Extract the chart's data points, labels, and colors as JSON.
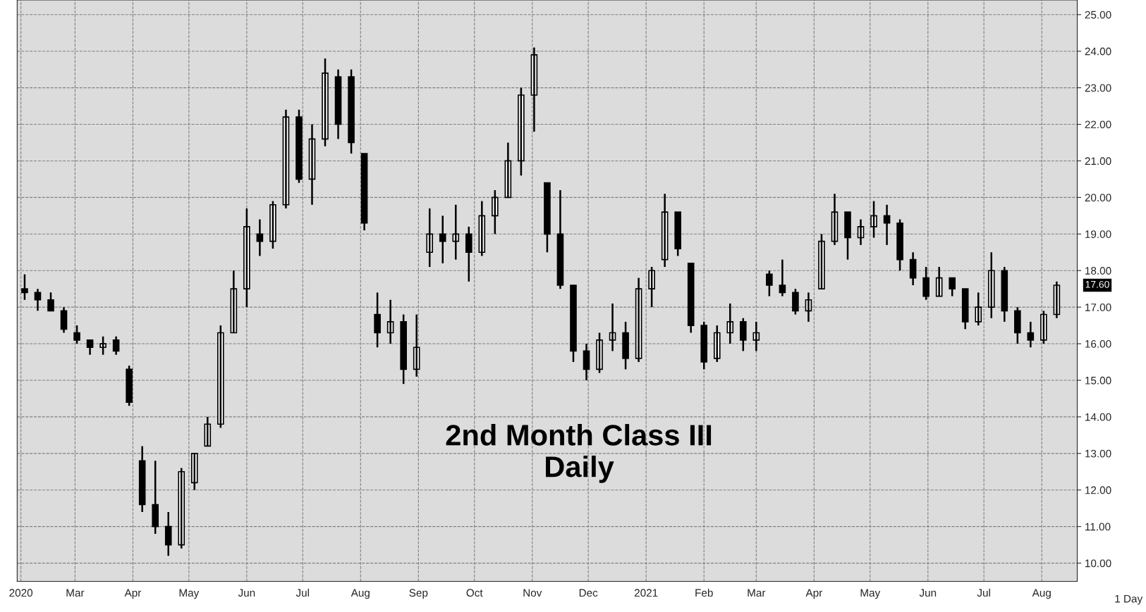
{
  "chart_data": {
    "type": "candlestick",
    "title": "2nd Month Class III\nDaily",
    "x": [
      "2020-02-03",
      "2020-02-10",
      "2020-02-17",
      "2020-02-24",
      "2020-03-02",
      "2020-03-09",
      "2020-03-16",
      "2020-03-23",
      "2020-03-30",
      "2020-04-06",
      "2020-04-13",
      "2020-04-20",
      "2020-04-27",
      "2020-05-04",
      "2020-05-11",
      "2020-05-18",
      "2020-05-25",
      "2020-06-01",
      "2020-06-08",
      "2020-06-15",
      "2020-06-22",
      "2020-06-29",
      "2020-07-06",
      "2020-07-13",
      "2020-07-20",
      "2020-07-27",
      "2020-08-03",
      "2020-08-10",
      "2020-08-17",
      "2020-08-24",
      "2020-08-31",
      "2020-09-07",
      "2020-09-14",
      "2020-09-21",
      "2020-09-28",
      "2020-10-05",
      "2020-10-12",
      "2020-10-19",
      "2020-10-26",
      "2020-11-02",
      "2020-11-09",
      "2020-11-16",
      "2020-11-23",
      "2020-11-30",
      "2020-12-07",
      "2020-12-14",
      "2020-12-21",
      "2020-12-28",
      "2021-01-04",
      "2021-01-11",
      "2021-01-18",
      "2021-01-25",
      "2021-02-01",
      "2021-02-08",
      "2021-02-15",
      "2021-02-22",
      "2021-03-01",
      "2021-03-08",
      "2021-03-15",
      "2021-03-22",
      "2021-03-29",
      "2021-04-05",
      "2021-04-12",
      "2021-04-19",
      "2021-04-26",
      "2021-05-03",
      "2021-05-10",
      "2021-05-17",
      "2021-05-24",
      "2021-05-31",
      "2021-06-07",
      "2021-06-14",
      "2021-06-21",
      "2021-06-28",
      "2021-07-05",
      "2021-07-12",
      "2021-07-19",
      "2021-07-26",
      "2021-08-02",
      "2021-08-09"
    ],
    "ohlc": [
      [
        17.5,
        17.9,
        17.2,
        17.4
      ],
      [
        17.4,
        17.5,
        16.9,
        17.2
      ],
      [
        17.2,
        17.4,
        16.9,
        16.9
      ],
      [
        16.9,
        17.0,
        16.3,
        16.4
      ],
      [
        16.3,
        16.5,
        16.0,
        16.1
      ],
      [
        16.1,
        16.1,
        15.7,
        15.9
      ],
      [
        15.9,
        16.2,
        15.7,
        16.0
      ],
      [
        16.1,
        16.2,
        15.7,
        15.8
      ],
      [
        15.3,
        15.4,
        14.3,
        14.4
      ],
      [
        12.8,
        13.2,
        11.4,
        11.6
      ],
      [
        11.6,
        12.8,
        10.8,
        11.0
      ],
      [
        11.0,
        11.4,
        10.2,
        10.5
      ],
      [
        10.5,
        12.6,
        10.4,
        12.5
      ],
      [
        12.2,
        13.0,
        12.0,
        13.0
      ],
      [
        13.2,
        14.0,
        13.2,
        13.8
      ],
      [
        13.8,
        16.5,
        13.7,
        16.3
      ],
      [
        16.3,
        18.0,
        16.3,
        17.5
      ],
      [
        17.5,
        19.7,
        17.0,
        19.2
      ],
      [
        19.0,
        19.4,
        18.4,
        18.8
      ],
      [
        18.8,
        19.9,
        18.6,
        19.8
      ],
      [
        19.8,
        22.4,
        19.7,
        22.2
      ],
      [
        22.2,
        22.4,
        20.4,
        20.5
      ],
      [
        20.5,
        22.0,
        19.8,
        21.6
      ],
      [
        21.6,
        23.8,
        21.4,
        23.4
      ],
      [
        23.3,
        23.5,
        21.6,
        22.0
      ],
      [
        23.3,
        23.5,
        21.2,
        21.5
      ],
      [
        21.2,
        21.2,
        19.1,
        19.3
      ],
      [
        16.8,
        17.4,
        15.9,
        16.3
      ],
      [
        16.3,
        17.2,
        16.0,
        16.6
      ],
      [
        16.6,
        16.8,
        14.9,
        15.3
      ],
      [
        15.3,
        16.8,
        15.1,
        15.9
      ],
      [
        18.5,
        19.7,
        18.1,
        19.0
      ],
      [
        19.0,
        19.5,
        18.2,
        18.8
      ],
      [
        18.8,
        19.8,
        18.3,
        19.0
      ],
      [
        19.0,
        19.2,
        17.7,
        18.5
      ],
      [
        18.5,
        19.9,
        18.4,
        19.5
      ],
      [
        19.5,
        20.2,
        19.0,
        20.0
      ],
      [
        20.0,
        21.5,
        20.0,
        21.0
      ],
      [
        21.0,
        23.0,
        20.6,
        22.8
      ],
      [
        22.8,
        24.1,
        21.8,
        23.9
      ],
      [
        20.4,
        20.4,
        18.5,
        19.0
      ],
      [
        19.0,
        20.2,
        17.5,
        17.6
      ],
      [
        17.6,
        17.6,
        15.5,
        15.8
      ],
      [
        15.8,
        16.0,
        15.0,
        15.3
      ],
      [
        15.3,
        16.3,
        15.2,
        16.1
      ],
      [
        16.1,
        17.1,
        15.8,
        16.3
      ],
      [
        16.3,
        16.6,
        15.3,
        15.6
      ],
      [
        15.6,
        17.8,
        15.5,
        17.5
      ],
      [
        17.5,
        18.1,
        17.0,
        18.0
      ],
      [
        18.3,
        20.1,
        18.1,
        19.6
      ],
      [
        19.6,
        19.6,
        18.4,
        18.6
      ],
      [
        18.2,
        18.2,
        16.3,
        16.5
      ],
      [
        16.5,
        16.6,
        15.3,
        15.5
      ],
      [
        15.6,
        16.5,
        15.5,
        16.3
      ],
      [
        16.3,
        17.1,
        16.0,
        16.6
      ],
      [
        16.6,
        16.7,
        15.8,
        16.1
      ],
      [
        16.1,
        16.6,
        15.8,
        16.3
      ],
      [
        17.9,
        18.0,
        17.3,
        17.6
      ],
      [
        17.6,
        18.3,
        17.3,
        17.4
      ],
      [
        17.4,
        17.5,
        16.8,
        16.9
      ],
      [
        16.9,
        17.4,
        16.6,
        17.2
      ],
      [
        17.5,
        19.0,
        17.5,
        18.8
      ],
      [
        18.8,
        20.1,
        18.7,
        19.6
      ],
      [
        19.6,
        19.6,
        18.3,
        18.9
      ],
      [
        18.9,
        19.4,
        18.7,
        19.2
      ],
      [
        19.2,
        19.9,
        18.9,
        19.5
      ],
      [
        19.5,
        19.8,
        18.7,
        19.3
      ],
      [
        19.3,
        19.4,
        18.0,
        18.3
      ],
      [
        18.3,
        18.5,
        17.6,
        17.8
      ],
      [
        17.8,
        18.1,
        17.2,
        17.3
      ],
      [
        17.3,
        18.1,
        17.3,
        17.8
      ],
      [
        17.8,
        17.8,
        17.3,
        17.5
      ],
      [
        17.5,
        17.5,
        16.4,
        16.6
      ],
      [
        16.6,
        17.4,
        16.5,
        17.0
      ],
      [
        17.0,
        18.5,
        16.7,
        18.0
      ],
      [
        18.0,
        18.1,
        16.6,
        16.9
      ],
      [
        16.9,
        17.0,
        16.0,
        16.3
      ],
      [
        16.3,
        16.6,
        15.9,
        16.1
      ],
      [
        16.1,
        16.9,
        16.0,
        16.8
      ],
      [
        16.8,
        17.7,
        16.7,
        17.6
      ]
    ],
    "color": "#000000",
    "xlim": [
      "2020-01-30",
      "2021-08-20"
    ],
    "xticks": [
      {
        "value": "2020-02-01",
        "label": "2020"
      },
      {
        "value": "2020-03-01",
        "label": "Mar"
      },
      {
        "value": "2020-04-01",
        "label": "Apr"
      },
      {
        "value": "2020-05-01",
        "label": "May"
      },
      {
        "value": "2020-06-01",
        "label": "Jun"
      },
      {
        "value": "2020-07-01",
        "label": "Jul"
      },
      {
        "value": "2020-08-01",
        "label": "Aug"
      },
      {
        "value": "2020-09-01",
        "label": "Sep"
      },
      {
        "value": "2020-10-01",
        "label": "Oct"
      },
      {
        "value": "2020-11-01",
        "label": "Nov"
      },
      {
        "value": "2020-12-01",
        "label": "Dec"
      },
      {
        "value": "2021-01-01",
        "label": "2021"
      },
      {
        "value": "2021-02-01",
        "label": "Feb"
      },
      {
        "value": "2021-03-01",
        "label": "Mar"
      },
      {
        "value": "2021-04-01",
        "label": "Apr"
      },
      {
        "value": "2021-05-01",
        "label": "May"
      },
      {
        "value": "2021-06-01",
        "label": "Jun"
      },
      {
        "value": "2021-07-01",
        "label": "Jul"
      },
      {
        "value": "2021-08-01",
        "label": "Aug"
      }
    ],
    "ylim": [
      9.5,
      25.4
    ],
    "yticks": [
      {
        "value": 10,
        "label": "10.00"
      },
      {
        "value": 11,
        "label": "11.00"
      },
      {
        "value": 12,
        "label": "12.00"
      },
      {
        "value": 13,
        "label": "13.00"
      },
      {
        "value": 14,
        "label": "14.00"
      },
      {
        "value": 15,
        "label": "15.00"
      },
      {
        "value": 16,
        "label": "16.00"
      },
      {
        "value": 17,
        "label": "17.00"
      },
      {
        "value": 18,
        "label": "18.00"
      },
      {
        "value": 19,
        "label": "19.00"
      },
      {
        "value": 20,
        "label": "20.00"
      },
      {
        "value": 21,
        "label": "21.00"
      },
      {
        "value": 22,
        "label": "22.00"
      },
      {
        "value": 23,
        "label": "23.00"
      },
      {
        "value": 24,
        "label": "24.00"
      },
      {
        "value": 25,
        "label": "25.00"
      }
    ],
    "grid": true,
    "annotations": [
      "17.60",
      "1 Day"
    ]
  }
}
